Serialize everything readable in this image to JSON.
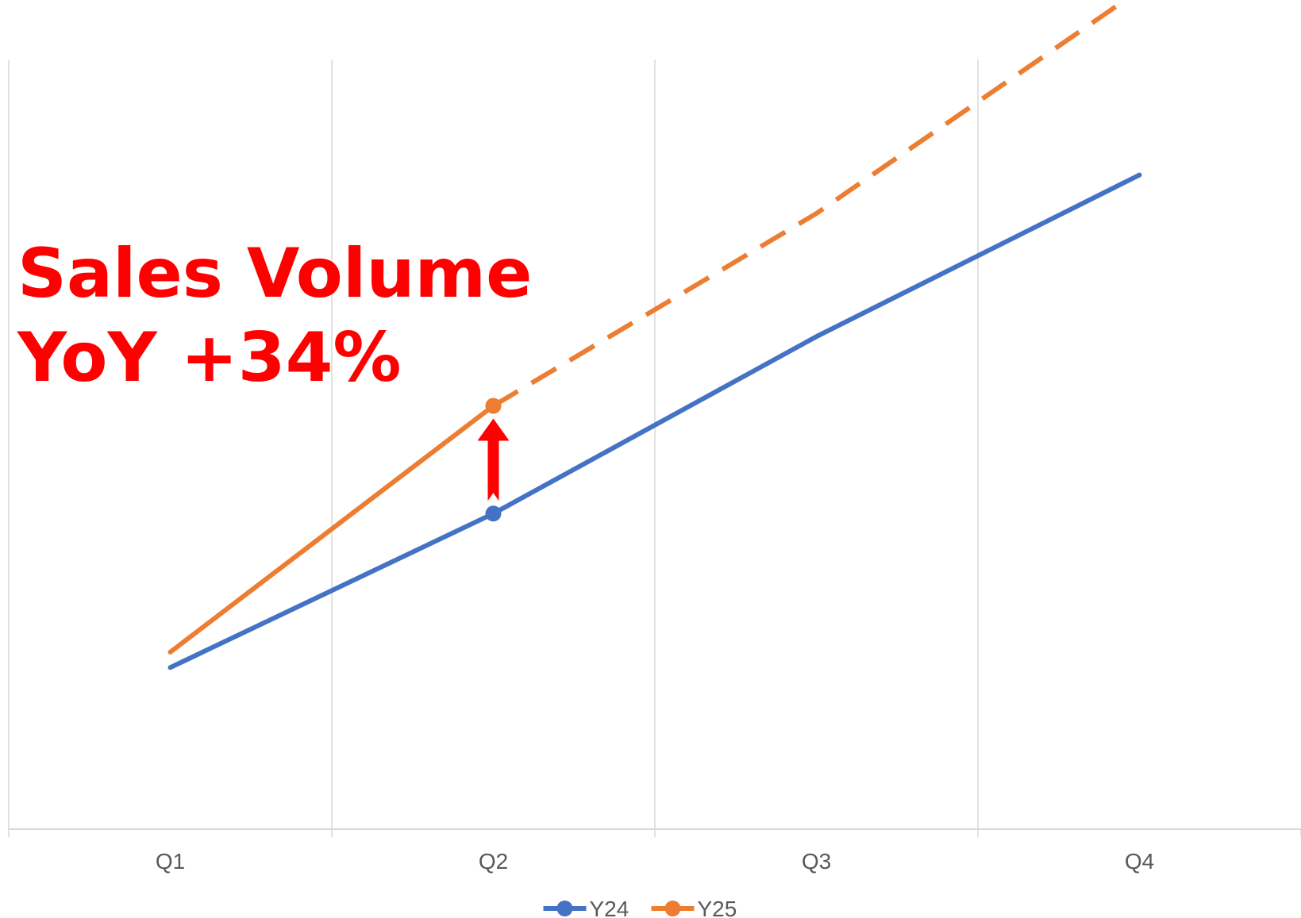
{
  "chart_data": {
    "type": "line",
    "title": "",
    "xlabel": "",
    "ylabel": "",
    "categories": [
      "Q1",
      "Q2",
      "Q3",
      "Q4"
    ],
    "ylim": [
      0,
      100
    ],
    "grid": {
      "vertical": true,
      "horizontal": false
    },
    "legend": "bottom",
    "series": [
      {
        "name": "Y24",
        "color": "#4472C4",
        "values": [
          21,
          41,
          64,
          85
        ],
        "line_style": "solid",
        "marker_at": [
          "Q2"
        ]
      },
      {
        "name": "Y25",
        "color": "#ED7D31",
        "values": [
          23,
          55,
          80,
          109
        ],
        "solid_through": "Q2",
        "projected_after": "Q2",
        "line_style": "solid-then-dashed",
        "marker_at": [
          "Q2"
        ]
      }
    ],
    "annotation": {
      "lines": [
        "Sales Volume",
        "YoY +34%"
      ],
      "color": "#FF0000",
      "arrow": {
        "category": "Q2",
        "from_series": "Y24",
        "to_series": "Y25",
        "color": "#FF0000"
      }
    }
  }
}
